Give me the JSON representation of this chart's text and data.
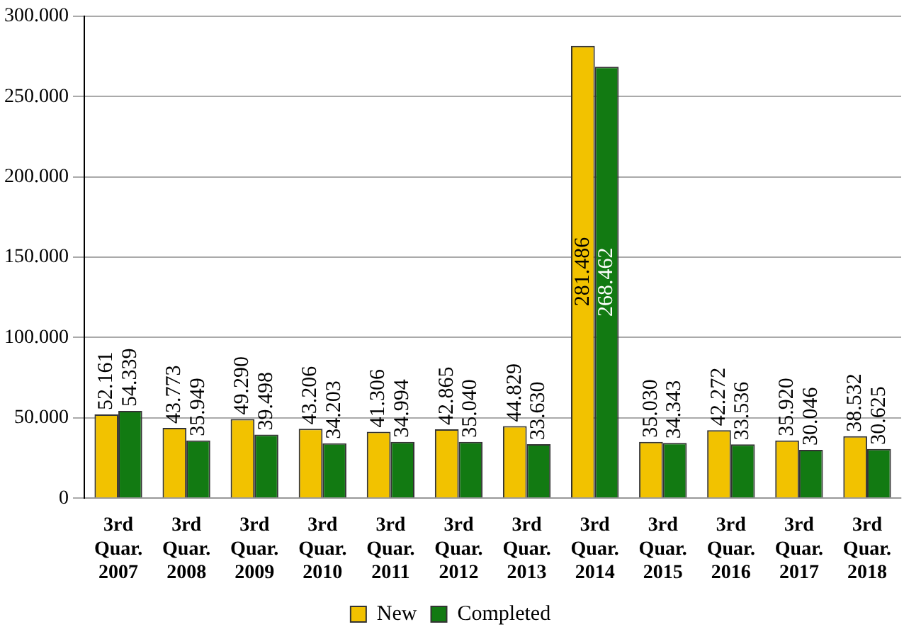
{
  "chart_data": {
    "type": "bar",
    "categories": [
      "3rd Quar. 2007",
      "3rd Quar. 2008",
      "3rd Quar. 2009",
      "3rd Quar. 2010",
      "3rd Quar. 2011",
      "3rd Quar. 2012",
      "3rd Quar. 2013",
      "3rd Quar. 2014",
      "3rd Quar. 2015",
      "3rd Quar. 2016",
      "3rd Quar. 2017",
      "3rd Quar. 2018"
    ],
    "series": [
      {
        "name": "New",
        "color": "#f2c200",
        "values": [
          52161,
          43773,
          49290,
          43206,
          41306,
          42865,
          44829,
          281486,
          35030,
          42272,
          35920,
          38532
        ],
        "value_labels": [
          "52.161",
          "43.773",
          "49.290",
          "43.206",
          "41.306",
          "42.865",
          "44.829",
          "281.486",
          "35.030",
          "42.272",
          "35.920",
          "38.532"
        ]
      },
      {
        "name": "Completed",
        "color": "#127a12",
        "values": [
          54339,
          35949,
          39498,
          34203,
          34994,
          35040,
          33630,
          268462,
          34343,
          33536,
          30046,
          30625
        ],
        "value_labels": [
          "54.339",
          "35.949",
          "39.498",
          "34.203",
          "34.994",
          "35.040",
          "33.630",
          "268.462",
          "34.343",
          "33.536",
          "30.046",
          "30.625"
        ]
      }
    ],
    "ylim": [
      0,
      300000
    ],
    "yticks": [
      {
        "value": 0,
        "label": "0"
      },
      {
        "value": 50000,
        "label": "50.000"
      },
      {
        "value": 100000,
        "label": "100.000"
      },
      {
        "value": 150000,
        "label": "150.000"
      },
      {
        "value": 200000,
        "label": "200.000"
      },
      {
        "value": 250000,
        "label": "250.000"
      },
      {
        "value": 300000,
        "label": "300.000"
      }
    ],
    "grid": "y",
    "legend": "bottom"
  }
}
